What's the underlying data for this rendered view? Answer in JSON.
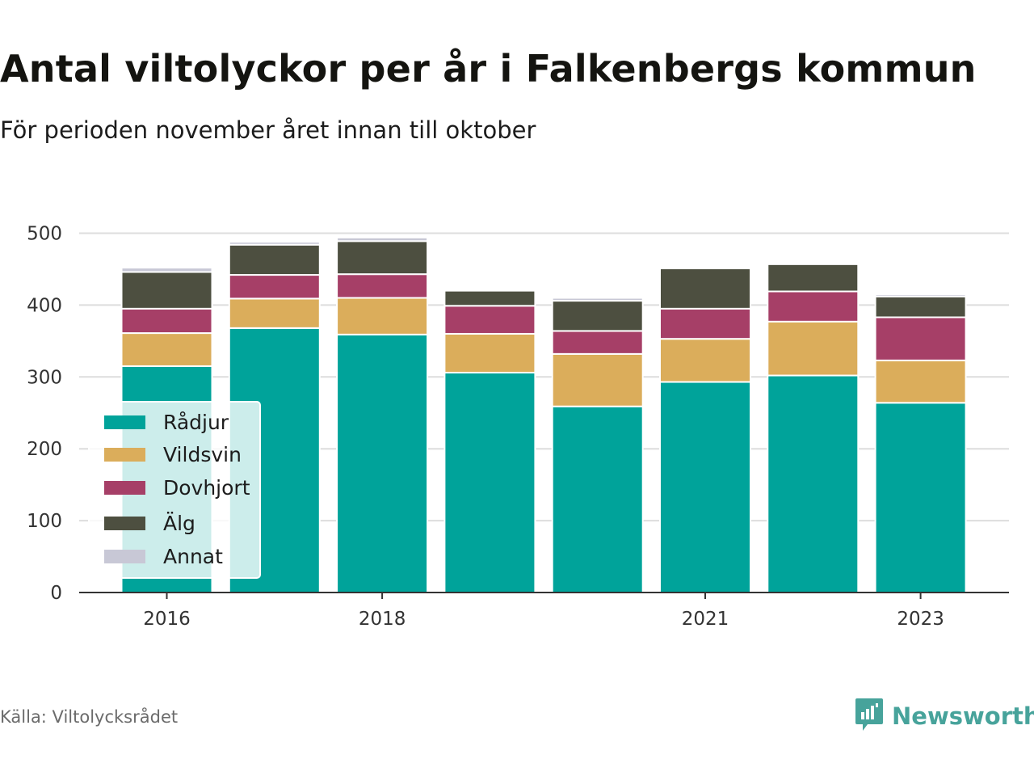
{
  "title": "Antal viltolyckor per år i Falkenbergs kommun",
  "subtitle": "För perioden november året innan till oktober",
  "source": "Källa: Viltolycksrådet",
  "brand": {
    "name": "Newsworthy",
    "icon": "newsworthy-logo-icon",
    "color": "#47a39b"
  },
  "chart_data": {
    "type": "bar",
    "stacked": true,
    "x": [
      2016,
      2017,
      2018,
      2019,
      2020,
      2021,
      2022,
      2023
    ],
    "x_tick_labels": [
      "2016",
      "2018",
      "2021",
      "2023"
    ],
    "x_tick_values": [
      2016,
      2018,
      2021,
      2023
    ],
    "y_ticks": [
      "0",
      "100",
      "200",
      "300",
      "400",
      "500"
    ],
    "y_tick_values": [
      0,
      100,
      200,
      300,
      400,
      500
    ],
    "ylim": [
      0,
      560
    ],
    "grid": true,
    "legend_position": "left",
    "series": [
      {
        "name": "Rådjur",
        "color": "#00a39a",
        "values": [
          315,
          368,
          359,
          306,
          259,
          293,
          302,
          264
        ]
      },
      {
        "name": "Vildsvin",
        "color": "#dbad5b",
        "values": [
          46,
          41,
          51,
          54,
          73,
          60,
          75,
          59
        ]
      },
      {
        "name": "Dovhjort",
        "color": "#a63f67",
        "values": [
          34,
          33,
          33,
          39,
          32,
          42,
          42,
          60
        ]
      },
      {
        "name": "Älg",
        "color": "#4d4f40",
        "values": [
          51,
          42,
          46,
          21,
          42,
          56,
          38,
          29
        ]
      },
      {
        "name": "Annat",
        "color": "#c8c8d6",
        "values": [
          6,
          4,
          5,
          0,
          4,
          0,
          2,
          3
        ]
      }
    ]
  }
}
